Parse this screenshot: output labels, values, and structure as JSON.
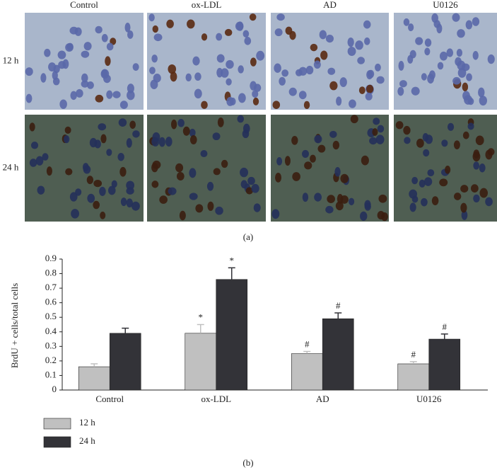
{
  "panel_a": {
    "columns": [
      "Control",
      "ox-LDL",
      "AD",
      "U0126"
    ],
    "rows": [
      "12 h",
      "24 h"
    ],
    "panel_label": "(a)"
  },
  "chart_data": {
    "type": "bar",
    "panel_label": "(b)",
    "y_label": "BrdU + cells/total cells",
    "categories": [
      "Control",
      "ox-LDL",
      "AD",
      "U0126"
    ],
    "series": [
      {
        "name": "12 h",
        "color": "#c0c0c0",
        "values": [
          0.16,
          0.39,
          0.25,
          0.18
        ],
        "errors": [
          0.02,
          0.06,
          0.015,
          0.015
        ],
        "annotations": [
          null,
          "*",
          "#",
          "#"
        ]
      },
      {
        "name": "24 h",
        "color": "#333338",
        "values": [
          0.39,
          0.76,
          0.49,
          0.35
        ],
        "errors": [
          0.035,
          0.08,
          0.04,
          0.035
        ],
        "annotations": [
          null,
          "*",
          "#",
          "#"
        ]
      }
    ],
    "ylim": [
      0,
      0.9
    ],
    "yticks": [
      0,
      0.1,
      0.2,
      0.3,
      0.4,
      0.5,
      0.6,
      0.7,
      0.8,
      0.9
    ],
    "grid": false,
    "legend": "bottom-left"
  }
}
